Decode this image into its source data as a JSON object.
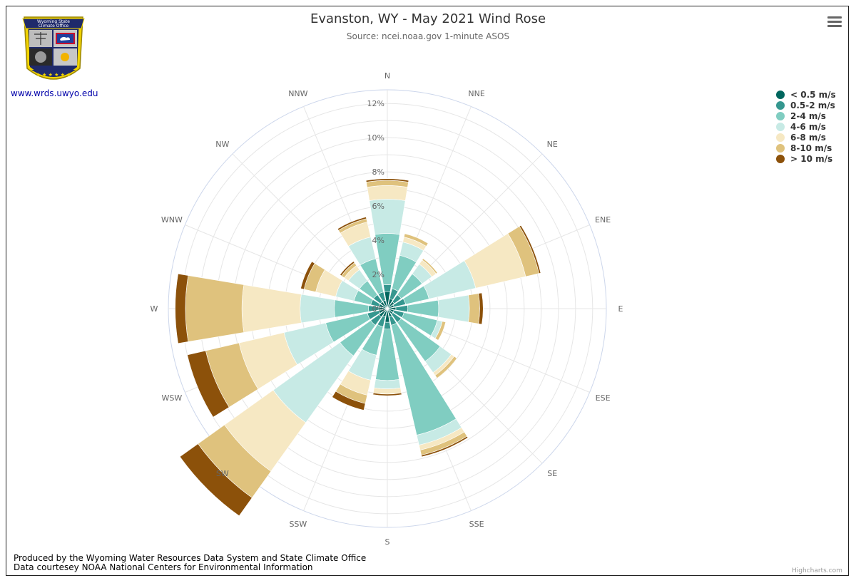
{
  "header": {
    "title": "Evanston, WY - May 2021 Wind Rose",
    "subtitle": "Source: ncei.noaa.gov 1-minute ASOS"
  },
  "logo": {
    "line1": "Wyoming State",
    "line2": "Climate Office",
    "link_text": "www.wrds.uwyo.edu"
  },
  "menu": {
    "icon": "hamburger-menu-icon"
  },
  "footer": {
    "line1": "Produced by the Wyoming Water Resources Data System and State Climate Office",
    "line2": "Data courtesey NOAA National Centers for Environmental Information"
  },
  "credits": "Highcharts.com",
  "chart_data": {
    "type": "windrose",
    "title": "Evanston, WY - May 2021 Wind Rose",
    "subtitle": "Source: ncei.noaa.gov 1-minute ASOS",
    "directions": [
      "N",
      "NNE",
      "NE",
      "ENE",
      "E",
      "ESE",
      "SE",
      "SSE",
      "S",
      "SSW",
      "SW",
      "WSW",
      "W",
      "WNW",
      "NW",
      "NNW"
    ],
    "radial_ticks": [
      "0%",
      "2%",
      "4%",
      "6%",
      "8%",
      "10%",
      "12%"
    ],
    "radial_max": 12.8,
    "series": [
      {
        "name": "< 0.5 m/s",
        "color": "#00665e",
        "values": [
          1.0,
          0.6,
          0.5,
          0.4,
          0.5,
          0.4,
          0.4,
          0.5,
          0.8,
          0.5,
          0.6,
          0.5,
          0.5,
          0.5,
          0.5,
          0.5
        ]
      },
      {
        "name": "0.5-2 m/s",
        "color": "#35978f",
        "values": [
          0.4,
          0.6,
          0.5,
          0.7,
          0.7,
          0.6,
          0.6,
          0.5,
          0.4,
          0.6,
          0.6,
          0.7,
          0.6,
          0.5,
          0.5,
          0.5
        ]
      },
      {
        "name": "2-4 m/s",
        "color": "#80cdc1",
        "values": [
          3.0,
          2.0,
          1.5,
          1.4,
          1.8,
          2.0,
          2.8,
          6.6,
          3.0,
          1.7,
          2.2,
          2.5,
          2.0,
          1.0,
          1.0,
          2.0
        ]
      },
      {
        "name": "4-6 m/s",
        "color": "#c7eae5",
        "values": [
          2.0,
          0.8,
          0.7,
          2.8,
          1.8,
          0.3,
          0.8,
          0.6,
          0.5,
          1.5,
          4.8,
          2.5,
          2.0,
          1.1,
          0.8,
          1.3
        ]
      },
      {
        "name": "6-8 m/s",
        "color": "#f6e8c3",
        "values": [
          0.8,
          0.3,
          0.3,
          3.0,
          0.0,
          0.0,
          0.2,
          0.3,
          0.3,
          0.9,
          3.5,
          2.7,
          3.4,
          1.2,
          0.3,
          0.9
        ]
      },
      {
        "name": "8-10 m/s",
        "color": "#dfc27d",
        "values": [
          0.3,
          0.2,
          0.1,
          0.8,
          0.6,
          0.2,
          0.2,
          0.3,
          0.0,
          0.5,
          1.9,
          2.0,
          3.3,
          0.7,
          0.2,
          0.2
        ]
      },
      {
        "name": "> 10 m/s",
        "color": "#8c510a",
        "values": [
          0.1,
          0.0,
          0.0,
          0.1,
          0.2,
          0.0,
          0.0,
          0.1,
          0.1,
          0.4,
          1.3,
          1.1,
          0.6,
          0.2,
          0.1,
          0.1
        ]
      }
    ],
    "legend_position": "right-top",
    "grid": true
  }
}
